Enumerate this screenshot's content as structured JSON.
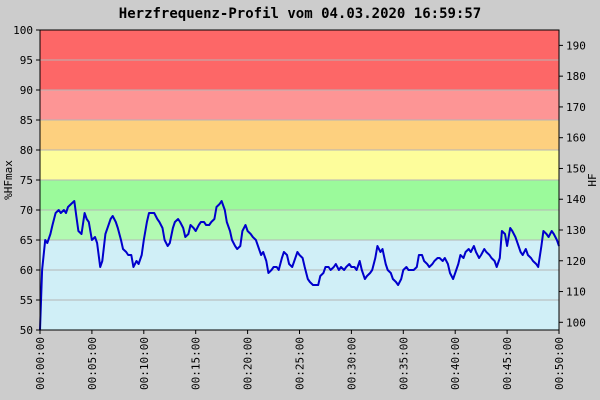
{
  "chart_data": {
    "type": "line",
    "title": "Herzfrequenz-Profil vom 04.03.2020 16:59:57",
    "ylabel_left": "%HFmax",
    "ylabel_right": "HF",
    "ylim_left": [
      50,
      100
    ],
    "ylim_right": [
      97.5,
      195
    ],
    "x_range_minutes": [
      0,
      50
    ],
    "yticks_left": [
      50,
      55,
      60,
      65,
      70,
      75,
      80,
      85,
      90,
      95,
      100
    ],
    "yticks_right": [
      100,
      110,
      120,
      130,
      140,
      150,
      160,
      170,
      180,
      190
    ],
    "xticks": [
      "00:00:00",
      "00:05:00",
      "00:10:00",
      "00:15:00",
      "00:20:00",
      "00:25:00",
      "00:30:00",
      "00:35:00",
      "00:40:00",
      "00:45:00",
      "00:50:00"
    ],
    "grid": true,
    "colors": {
      "series": "#0000cc",
      "background": "#cccccc",
      "zones": [
        "#d0eff7",
        "#b2fab2",
        "#9bfa9b",
        "#fdfd9b",
        "#fdd07f",
        "#fd9595",
        "#fd6767"
      ]
    },
    "zones": [
      {
        "from": 50,
        "to": 65
      },
      {
        "from": 65,
        "to": 70
      },
      {
        "from": 70,
        "to": 75
      },
      {
        "from": 75,
        "to": 80
      },
      {
        "from": 80,
        "to": 85
      },
      {
        "from": 85,
        "to": 90
      },
      {
        "from": 90,
        "to": 100
      }
    ],
    "series": [
      {
        "x": [
          0,
          0.2,
          0.5,
          0.7,
          1.0,
          1.2,
          1.5,
          1.8,
          2.0,
          2.3,
          2.5,
          2.7,
          3.0,
          3.3,
          3.5,
          3.7,
          4.0,
          4.3,
          4.5,
          4.7,
          5.0,
          5.3,
          5.5,
          5.8,
          6.0,
          6.3,
          6.5,
          6.8,
          7.0,
          7.3,
          7.5,
          7.8,
          8.0,
          8.3,
          8.5,
          8.8,
          9.0,
          9.3,
          9.5,
          9.8,
          10.0,
          10.3,
          10.5,
          10.8,
          11.0,
          11.3,
          11.5,
          11.8,
          12.0,
          12.3,
          12.5,
          12.8,
          13.0,
          13.3,
          13.5,
          13.8,
          14.0,
          14.3,
          14.5,
          14.8,
          15.0,
          15.3,
          15.5,
          15.8,
          16.0,
          16.3,
          16.5,
          16.8,
          17.0,
          17.3,
          17.5,
          17.8,
          18.0,
          18.3,
          18.5,
          18.8,
          19.0,
          19.3,
          19.5,
          19.8,
          20.0,
          20.3,
          20.5,
          20.8,
          21.0,
          21.3,
          21.5,
          21.8,
          22.0,
          22.3,
          22.5,
          22.8,
          23.0,
          23.3,
          23.5,
          23.8,
          24.0,
          24.3,
          24.5,
          24.8,
          25.0,
          25.3,
          25.5,
          25.8,
          26.0,
          26.3,
          26.5,
          26.8,
          27.0,
          27.3,
          27.5,
          27.8,
          28.0,
          28.3,
          28.5,
          28.8,
          29.0,
          29.3,
          29.5,
          29.8,
          30.0,
          30.3,
          30.5,
          30.8,
          31.0,
          31.3,
          31.5,
          31.8,
          32.0,
          32.3,
          32.5,
          32.8,
          33.0,
          33.3,
          33.5,
          33.8,
          34.0,
          34.3,
          34.5,
          34.8,
          35.0,
          35.3,
          35.5,
          35.8,
          36.0,
          36.3,
          36.5,
          36.8,
          37.0,
          37.3,
          37.5,
          37.8,
          38.0,
          38.3,
          38.5,
          38.8,
          39.0,
          39.3,
          39.5,
          39.8,
          40.0,
          40.3,
          40.5,
          40.8,
          41.0,
          41.3,
          41.5,
          41.8,
          42.0,
          42.3,
          42.5,
          42.8,
          43.0,
          43.3,
          43.5,
          43.8,
          44.0,
          44.3,
          44.5,
          44.8,
          45.0,
          45.3,
          45.5,
          45.8,
          46.0,
          46.3,
          46.5,
          46.8,
          47.0,
          47.3,
          47.5,
          47.8,
          48.0,
          48.3,
          48.5,
          48.8,
          49.0,
          49.3,
          49.5,
          49.8,
          50.0
        ],
        "y": [
          50,
          60,
          65,
          64.5,
          66,
          67.5,
          69.5,
          70,
          69.5,
          70,
          69.5,
          70.5,
          71,
          71.5,
          69,
          66.5,
          66,
          69.5,
          68.5,
          68,
          65,
          65.5,
          64.5,
          60.5,
          61.5,
          66,
          67,
          68.5,
          69,
          68,
          67,
          65,
          63.5,
          63,
          62.5,
          62.5,
          60.5,
          61.5,
          61,
          62.5,
          65,
          68,
          69.5,
          69.5,
          69.5,
          68.5,
          68,
          67,
          65,
          64,
          64.5,
          67,
          68,
          68.5,
          68,
          67,
          65.5,
          66,
          67.5,
          67,
          66.5,
          67.5,
          68,
          68,
          67.5,
          67.5,
          68,
          68.5,
          70.5,
          71,
          71.5,
          70,
          68,
          66.5,
          65,
          64,
          63.5,
          64,
          66.5,
          67.5,
          66.5,
          66,
          65.5,
          65,
          64,
          62.5,
          63,
          61.5,
          59.5,
          60,
          60.5,
          60.5,
          60,
          62,
          63,
          62.5,
          61,
          60.5,
          61.5,
          63,
          62.5,
          62,
          60.5,
          58.5,
          58,
          57.5,
          57.5,
          57.5,
          59,
          59.5,
          60.5,
          60.5,
          60,
          60.5,
          61,
          60,
          60.5,
          60,
          60.5,
          61,
          60.5,
          60.5,
          60,
          61.5,
          60,
          58.5,
          59,
          59.5,
          60,
          62,
          64,
          63,
          63.5,
          61,
          60,
          59.5,
          58.5,
          58,
          57.5,
          58.5,
          60,
          60.5,
          60,
          60,
          60,
          60.5,
          62.5,
          62.5,
          61.5,
          61,
          60.5,
          61,
          61.5,
          62,
          62,
          61.5,
          62,
          61,
          59.5,
          58.5,
          59.5,
          61,
          62.5,
          62,
          63,
          63.5,
          63,
          64,
          63,
          62,
          62.5,
          63.5,
          63,
          62.5,
          62,
          61.5,
          60.5,
          62,
          66.5,
          66,
          64,
          67,
          66.5,
          65.5,
          64.5,
          63,
          62.5,
          63.5,
          62.5,
          62,
          61.5,
          61,
          60.5,
          64,
          66.5,
          66,
          65.5,
          66.5,
          66,
          65,
          64
        ]
      }
    ]
  }
}
